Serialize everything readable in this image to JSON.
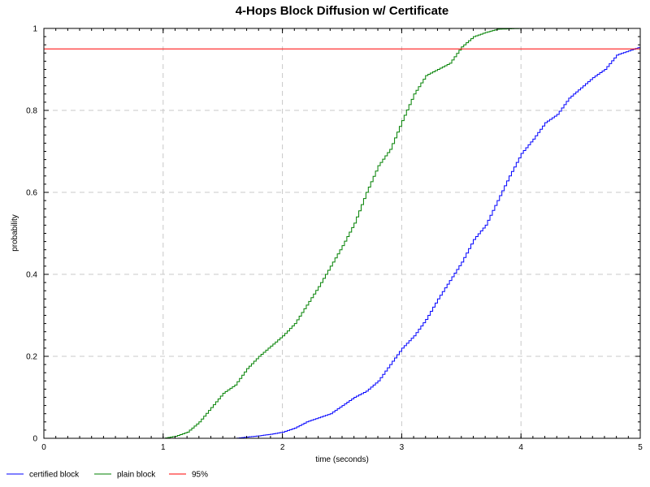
{
  "chart_data": {
    "type": "line",
    "title": "4-Hops Block Diffusion w/ Certificate",
    "xlabel": "time (seconds)",
    "ylabel": "probability",
    "xlim": [
      0,
      5
    ],
    "ylim": [
      0,
      1
    ],
    "x_ticks": [
      "0",
      "1",
      "2",
      "3",
      "4",
      "5"
    ],
    "y_ticks": [
      "0",
      "0.2",
      "0.4",
      "0.6",
      "0.8",
      "1"
    ],
    "grid": true,
    "legend_position": "bottom-left",
    "series": [
      {
        "name": "certified block",
        "color": "#0000ff",
        "x": [
          0,
          1.6,
          1.7,
          1.8,
          1.9,
          2.0,
          2.1,
          2.2,
          2.3,
          2.4,
          2.5,
          2.6,
          2.7,
          2.8,
          2.9,
          3.0,
          3.1,
          3.2,
          3.3,
          3.4,
          3.5,
          3.6,
          3.7,
          3.8,
          3.9,
          4.0,
          4.1,
          4.2,
          4.3,
          4.4,
          4.5,
          4.6,
          4.7,
          4.8,
          4.9,
          5.0
        ],
        "y": [
          0,
          0,
          0.003,
          0.006,
          0.01,
          0.015,
          0.025,
          0.04,
          0.05,
          0.06,
          0.08,
          0.1,
          0.115,
          0.14,
          0.18,
          0.22,
          0.25,
          0.29,
          0.34,
          0.385,
          0.43,
          0.485,
          0.52,
          0.58,
          0.64,
          0.695,
          0.73,
          0.77,
          0.79,
          0.83,
          0.855,
          0.88,
          0.9,
          0.935,
          0.945,
          0.955
        ]
      },
      {
        "name": "plain block",
        "color": "#008000",
        "x": [
          0,
          1.0,
          1.1,
          1.2,
          1.3,
          1.4,
          1.5,
          1.6,
          1.7,
          1.8,
          1.9,
          2.0,
          2.1,
          2.2,
          2.3,
          2.4,
          2.5,
          2.6,
          2.7,
          2.8,
          2.9,
          3.0,
          3.1,
          3.2,
          3.3,
          3.4,
          3.5,
          3.6,
          3.7,
          3.8,
          3.9,
          4.0,
          5.0
        ],
        "y": [
          0,
          0,
          0.005,
          0.015,
          0.04,
          0.075,
          0.11,
          0.13,
          0.17,
          0.2,
          0.225,
          0.25,
          0.28,
          0.325,
          0.37,
          0.42,
          0.47,
          0.525,
          0.6,
          0.665,
          0.705,
          0.775,
          0.84,
          0.885,
          0.9,
          0.915,
          0.955,
          0.98,
          0.99,
          0.998,
          0.999,
          1,
          1
        ]
      },
      {
        "name": "95%",
        "color": "#ff0000",
        "x": [
          0,
          5
        ],
        "y": [
          0.95,
          0.95
        ]
      }
    ]
  }
}
